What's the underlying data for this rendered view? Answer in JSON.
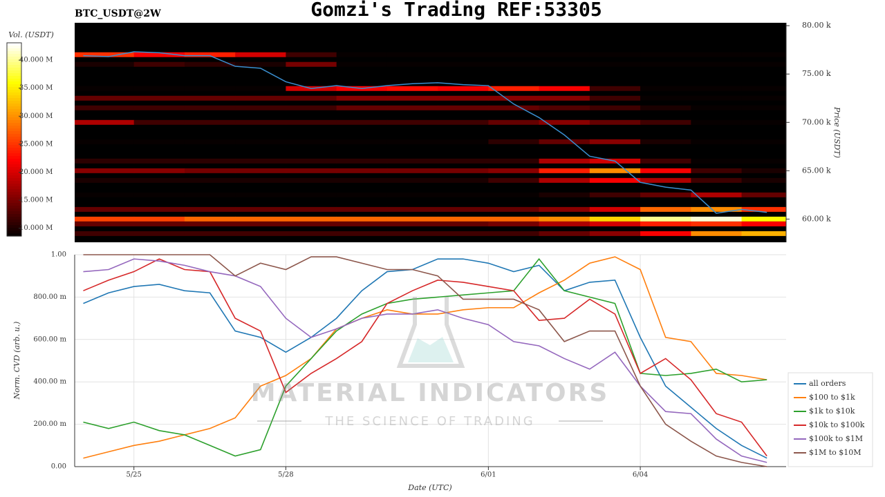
{
  "title": "Gomzi's Trading REF:53305",
  "watermark": {
    "title": "MATERIAL INDICATORS",
    "subtitle": "THE SCIENCE OF TRADING"
  },
  "chart_data": [
    {
      "type": "heatmap",
      "label": "BTC_USDT@2W",
      "colorbar_label": "Vol. (USDT)",
      "zlim": [
        8.6,
        43.1
      ],
      "zticks": [
        {
          "value": 10,
          "label": "10.000 M"
        },
        {
          "value": 15,
          "label": "15.000 M"
        },
        {
          "value": 20,
          "label": "20.000 M"
        },
        {
          "value": 25,
          "label": "25.000 M"
        },
        {
          "value": 30,
          "label": "30.000 M"
        },
        {
          "value": 35,
          "label": "35.000 M"
        },
        {
          "value": 40,
          "label": "40.000 M"
        }
      ],
      "ylabel": "Price (USDT)",
      "ylim": [
        57.6,
        80.3
      ],
      "yticks": [
        {
          "value": 60,
          "label": "60.00 k"
        },
        {
          "value": 65,
          "label": "65.00 k"
        },
        {
          "value": 70,
          "label": "70.00 k"
        },
        {
          "value": 75,
          "label": "75.00 k"
        },
        {
          "value": 80,
          "label": "80.00 k"
        }
      ],
      "xlim": [
        -1.17,
        12.88
      ],
      "heat_x": [
        -1,
        0,
        1,
        2,
        3,
        4,
        5,
        6,
        7,
        8,
        9,
        10,
        11,
        12
      ],
      "levels": [
        77,
        76,
        73.5,
        72.5,
        71.5,
        70,
        68,
        66,
        65,
        64,
        62.5,
        61,
        60,
        59.5,
        58.5
      ],
      "z": [
        [
          25,
          22,
          24,
          20,
          12,
          9,
          9,
          9,
          9,
          9,
          9,
          9,
          9,
          9
        ],
        [
          10,
          12,
          11,
          10,
          15,
          9,
          9,
          9,
          9,
          9,
          9,
          9,
          9,
          9
        ],
        [
          9,
          9,
          9,
          9,
          20,
          22,
          23,
          22,
          24,
          22,
          12,
          9,
          9,
          9
        ],
        [
          14,
          14,
          14,
          14,
          14,
          16,
          16,
          16,
          16,
          16,
          12,
          9,
          9,
          9
        ],
        [
          12,
          12,
          12,
          12,
          12,
          14,
          14,
          14,
          14,
          13,
          12,
          10,
          9,
          9
        ],
        [
          18,
          12,
          12,
          12,
          12,
          12,
          12,
          12,
          14,
          16,
          14,
          12,
          9,
          9
        ],
        [
          9,
          9,
          9,
          9,
          9,
          9,
          9,
          9,
          11,
          14,
          16,
          10,
          9,
          9
        ],
        [
          11,
          11,
          11,
          11,
          11,
          11,
          11,
          11,
          11,
          18,
          20,
          12,
          9,
          9
        ],
        [
          16,
          16,
          15,
          15,
          15,
          15,
          15,
          15,
          16,
          24,
          30,
          22,
          12,
          10
        ],
        [
          10,
          10,
          10,
          10,
          10,
          10,
          10,
          10,
          12,
          18,
          22,
          18,
          12,
          10
        ],
        [
          9,
          9,
          9,
          9,
          9,
          9,
          9,
          9,
          9,
          10,
          12,
          14,
          18,
          14
        ],
        [
          14,
          14,
          14,
          14,
          14,
          14,
          14,
          14,
          14,
          16,
          20,
          28,
          30,
          25
        ],
        [
          26,
          26,
          28,
          28,
          28,
          28,
          28,
          28,
          28,
          30,
          34,
          40,
          42,
          36
        ],
        [
          14,
          14,
          14,
          14,
          14,
          14,
          14,
          14,
          15,
          18,
          20,
          24,
          25,
          22
        ],
        [
          12,
          12,
          12,
          12,
          12,
          12,
          12,
          12,
          12,
          14,
          16,
          22,
          30,
          32
        ]
      ],
      "line": {
        "color": "#3a8fd0",
        "x": [
          -1,
          -0.5,
          0,
          0.5,
          1,
          1.5,
          2,
          2.5,
          3,
          3.5,
          4,
          4.5,
          5,
          5.5,
          6,
          6.5,
          7,
          7.5,
          8,
          8.5,
          9,
          9.5,
          10,
          10.5,
          11,
          11.5,
          12,
          12.5
        ],
        "values": [
          76.9,
          76.8,
          77.3,
          77.2,
          76.9,
          76.9,
          75.8,
          75.6,
          74.2,
          73.5,
          73.8,
          73.5,
          73.8,
          74.0,
          74.1,
          73.9,
          73.8,
          71.9,
          70.5,
          68.7,
          66.5,
          66.0,
          63.8,
          63.3,
          63.0,
          60.6,
          61.0,
          60.7
        ]
      }
    },
    {
      "type": "line",
      "xlabel": "Date (UTC)",
      "ylabel": "Norm. CVD (arb. u.)",
      "xlim": [
        -1.17,
        12.88
      ],
      "xticks": [
        {
          "value": 0,
          "label": "5/25"
        },
        {
          "value": 3,
          "label": "5/28"
        },
        {
          "value": 7,
          "label": "6/01"
        },
        {
          "value": 10,
          "label": "6/04"
        }
      ],
      "ylim": [
        0,
        1
      ],
      "yticks": [
        {
          "value": 0,
          "label": "0.00"
        },
        {
          "value": 0.2,
          "label": "200.00 m"
        },
        {
          "value": 0.4,
          "label": "400.00 m"
        },
        {
          "value": 0.6,
          "label": "600.00 m"
        },
        {
          "value": 0.8,
          "label": "800.00 m"
        },
        {
          "value": 1,
          "label": "1.00"
        }
      ],
      "grid": true,
      "legend": "outside right",
      "x": [
        -1,
        -0.5,
        0,
        0.5,
        1,
        1.5,
        2,
        2.5,
        3,
        3.5,
        4,
        4.5,
        5,
        5.5,
        6,
        6.5,
        7,
        7.5,
        8,
        8.5,
        9,
        9.5,
        10,
        10.5,
        11,
        11.5,
        12,
        12.5
      ],
      "series": [
        {
          "name": "all orders",
          "color": "#1f77b4",
          "values": [
            0.77,
            0.82,
            0.85,
            0.86,
            0.83,
            0.82,
            0.64,
            0.61,
            0.54,
            0.61,
            0.7,
            0.83,
            0.92,
            0.93,
            0.98,
            0.98,
            0.96,
            0.92,
            0.95,
            0.83,
            0.87,
            0.88,
            0.61,
            0.38,
            0.28,
            0.18,
            0.1,
            0.04
          ]
        },
        {
          "name": "$100 to $1k",
          "color": "#ff7f0e",
          "values": [
            0.04,
            0.07,
            0.1,
            0.12,
            0.15,
            0.18,
            0.23,
            0.38,
            0.43,
            0.51,
            0.65,
            0.7,
            0.74,
            0.72,
            0.72,
            0.74,
            0.75,
            0.75,
            0.82,
            0.88,
            0.96,
            0.99,
            0.93,
            0.61,
            0.59,
            0.44,
            0.43,
            0.41
          ]
        },
        {
          "name": "$1k to $10k",
          "color": "#2ca02c",
          "values": [
            0.21,
            0.18,
            0.21,
            0.17,
            0.15,
            0.1,
            0.05,
            0.08,
            0.38,
            0.51,
            0.64,
            0.72,
            0.77,
            0.79,
            0.8,
            0.81,
            0.82,
            0.83,
            0.98,
            0.83,
            0.8,
            0.77,
            0.44,
            0.43,
            0.44,
            0.46,
            0.4,
            0.41
          ]
        },
        {
          "name": "$10k to $100k",
          "color": "#d62728",
          "values": [
            0.83,
            0.88,
            0.92,
            0.98,
            0.93,
            0.92,
            0.7,
            0.64,
            0.35,
            0.44,
            0.51,
            0.59,
            0.77,
            0.83,
            0.88,
            0.87,
            0.85,
            0.83,
            0.69,
            0.7,
            0.79,
            0.72,
            0.44,
            0.51,
            0.41,
            0.25,
            0.21,
            0.05
          ]
        },
        {
          "name": "$100k to $1M",
          "color": "#9467bd",
          "values": [
            0.92,
            0.93,
            0.98,
            0.97,
            0.95,
            0.92,
            0.9,
            0.85,
            0.7,
            0.61,
            0.65,
            0.7,
            0.72,
            0.72,
            0.74,
            0.7,
            0.67,
            0.59,
            0.57,
            0.51,
            0.46,
            0.54,
            0.38,
            0.26,
            0.25,
            0.13,
            0.05,
            0.02
          ]
        },
        {
          "name": "$1M to $10M",
          "color": "#8c564b",
          "values": [
            1.0,
            1.0,
            1.0,
            1.0,
            1.0,
            1.0,
            0.9,
            0.96,
            0.93,
            0.99,
            0.99,
            0.96,
            0.93,
            0.93,
            0.9,
            0.79,
            0.79,
            0.79,
            0.74,
            0.59,
            0.64,
            0.64,
            0.38,
            0.2,
            0.12,
            0.05,
            0.02,
            0.0
          ]
        }
      ]
    }
  ]
}
